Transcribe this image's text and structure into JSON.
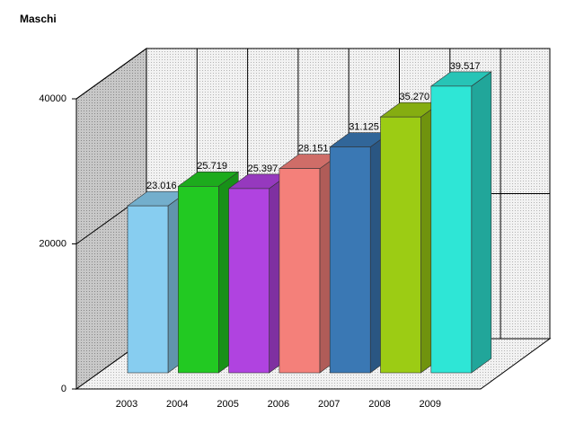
{
  "chart_data": {
    "type": "bar",
    "title": "Maschi",
    "categories": [
      "2003",
      "2004",
      "2005",
      "2006",
      "2007",
      "2008",
      "2009"
    ],
    "values": [
      23016,
      25719,
      25397,
      28151,
      31125,
      35270,
      39517
    ],
    "value_labels": [
      "23.016",
      "25.719",
      "25.397",
      "28.151",
      "31.125",
      "35.270",
      "39.517"
    ],
    "colors": [
      "#87cdf0",
      "#22c922",
      "#b043e0",
      "#f4807a",
      "#3a78b4",
      "#9ccc14",
      "#2ee6d6"
    ],
    "ylim": [
      0,
      40000
    ],
    "yticks": [
      0,
      20000,
      40000
    ],
    "grid": true
  }
}
